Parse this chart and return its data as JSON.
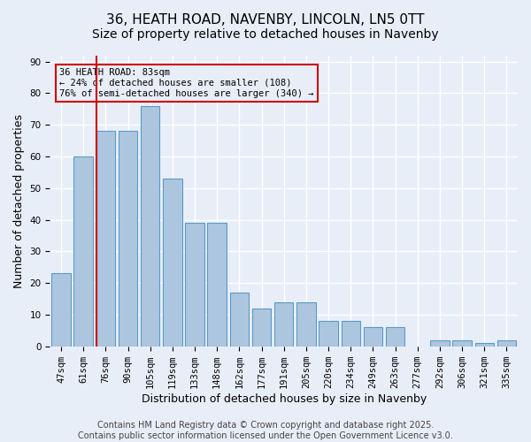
{
  "title": "36, HEATH ROAD, NAVENBY, LINCOLN, LN5 0TT",
  "subtitle": "Size of property relative to detached houses in Navenby",
  "xlabel": "Distribution of detached houses by size in Navenby",
  "ylabel": "Number of detached properties",
  "categories": [
    "47sqm",
    "61sqm",
    "76sqm",
    "90sqm",
    "105sqm",
    "119sqm",
    "133sqm",
    "148sqm",
    "162sqm",
    "177sqm",
    "191sqm",
    "205sqm",
    "220sqm",
    "234sqm",
    "249sqm",
    "263sqm",
    "277sqm",
    "292sqm",
    "306sqm",
    "321sqm",
    "335sqm"
  ],
  "values": [
    23,
    60,
    68,
    68,
    76,
    53,
    39,
    39,
    17,
    12,
    14,
    14,
    8,
    8,
    6,
    6,
    0,
    2,
    2,
    1,
    2
  ],
  "bar_color": "#adc6e0",
  "bar_edge_color": "#5a9ac5",
  "background_color": "#e8eef8",
  "grid_color": "#ffffff",
  "vline_x": 1.57,
  "vline_color": "#cc0000",
  "annotation_text": "36 HEATH ROAD: 83sqm\n← 24% of detached houses are smaller (108)\n76% of semi-detached houses are larger (340) →",
  "annotation_box_color": "#cc0000",
  "ylim": [
    0,
    92
  ],
  "yticks": [
    0,
    10,
    20,
    30,
    40,
    50,
    60,
    70,
    80,
    90
  ],
  "footer": "Contains HM Land Registry data © Crown copyright and database right 2025.\nContains public sector information licensed under the Open Government Licence v3.0.",
  "title_fontsize": 11,
  "subtitle_fontsize": 10,
  "axis_label_fontsize": 9,
  "tick_fontsize": 7.5,
  "footer_fontsize": 7
}
